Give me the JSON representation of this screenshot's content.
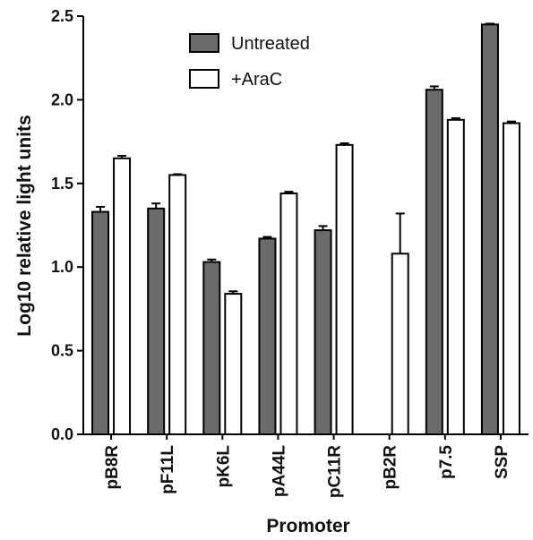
{
  "chart_data": {
    "type": "bar",
    "xlabel": "Promoter",
    "ylabel": "Log10 relative light units",
    "ylim": [
      0,
      2.5
    ],
    "yticks": [
      "0.0",
      "0.5",
      "1.0",
      "1.5",
      "2.0",
      "2.5"
    ],
    "categories": [
      "pB8R",
      "pF11L",
      "pK6L",
      "pA44L",
      "pC11R",
      "pB2R",
      "p7.5",
      "SSP"
    ],
    "series": [
      {
        "name": "Untreated",
        "color": "#6b6b6b",
        "values": [
          1.33,
          1.35,
          1.03,
          1.17,
          1.22,
          null,
          2.06,
          2.45
        ],
        "errors": [
          0.03,
          0.03,
          0.015,
          0.01,
          0.025,
          null,
          0.02,
          0.005
        ]
      },
      {
        "name": "+AraC",
        "color": "#ffffff",
        "values": [
          1.65,
          1.55,
          0.84,
          1.44,
          1.73,
          1.08,
          1.88,
          1.86
        ],
        "errors": [
          0.015,
          0.005,
          0.015,
          0.01,
          0.01,
          0.24,
          0.01,
          0.01
        ]
      }
    ],
    "legend": {
      "position": "top-left"
    },
    "grid": false
  }
}
